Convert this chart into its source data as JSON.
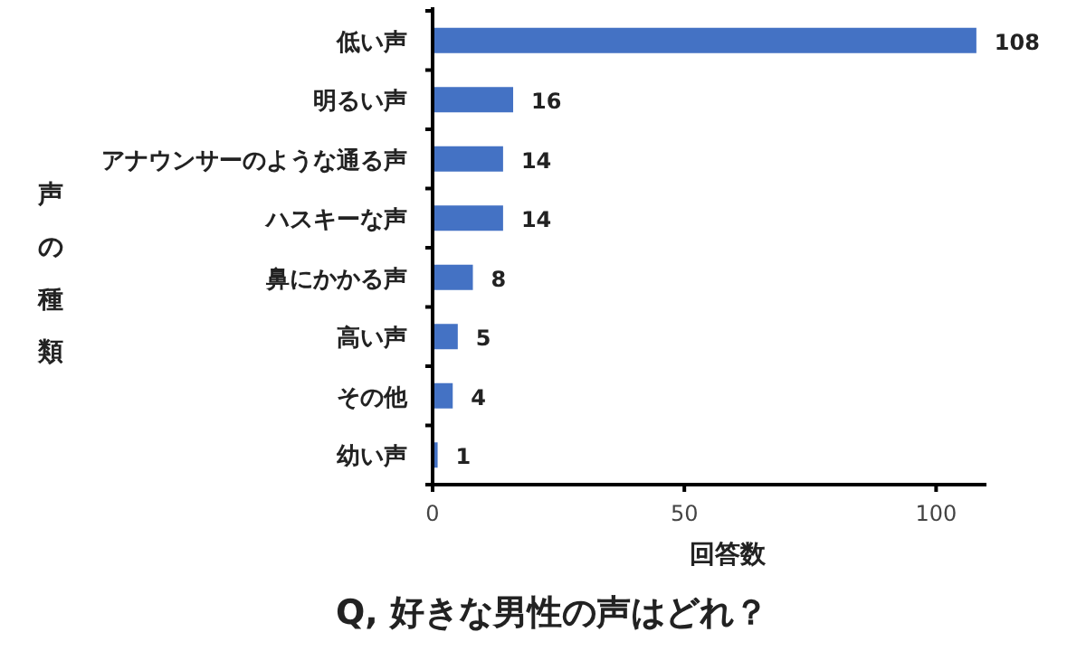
{
  "chart_data": {
    "type": "bar",
    "orientation": "horizontal",
    "title": "Q, 好きな男性の声はどれ？",
    "xlabel": "回答数",
    "ylabel": "声の種類",
    "categories": [
      "低い声",
      "明るい声",
      "アナウンサーのような通る声",
      "ハスキーな声",
      "鼻にかかる声",
      "高い声",
      "その他",
      "幼い声"
    ],
    "values": [
      108,
      16,
      14,
      14,
      8,
      5,
      4,
      1
    ],
    "color": "#4472c4",
    "xlim": [
      0,
      110
    ],
    "xticks": [
      0,
      50,
      100
    ],
    "data_labels": true
  }
}
